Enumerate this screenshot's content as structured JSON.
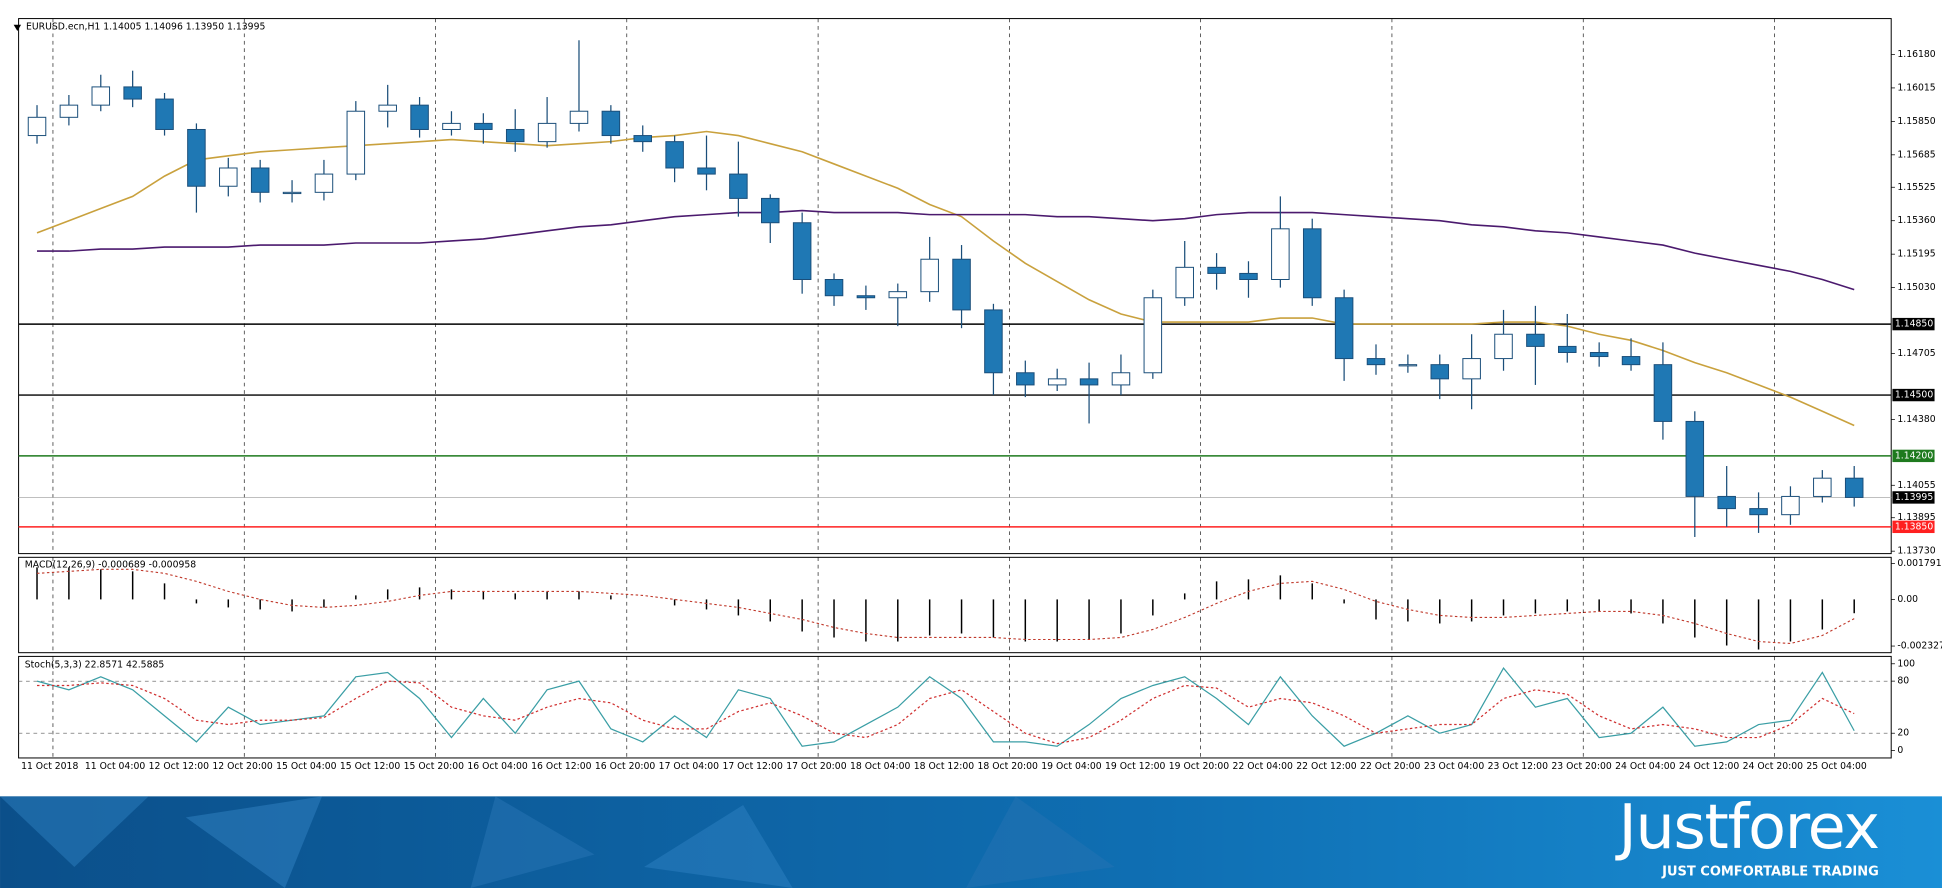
{
  "chart_data": [
    {
      "type": "candlestick",
      "title": "EURUSD.ecn,H1  1.14005 1.14096 1.13950 1.13995",
      "categories": [
        "11 Oct 2018",
        null,
        "11 Oct 04:00",
        null,
        "12 Oct 12:00",
        null,
        "12 Oct 20:00",
        null,
        "15 Oct 04:00",
        null,
        "15 Oct 12:00",
        null,
        "15 Oct 20:00",
        null,
        "16 Oct 04:00",
        null,
        "16 Oct 12:00",
        null,
        "16 Oct 20:00",
        null,
        "17 Oct 04:00",
        null,
        "17 Oct 12:00",
        null,
        "17 Oct 20:00",
        null,
        "18 Oct 04:00",
        null,
        "18 Oct 12:00",
        null,
        "18 Oct 20:00",
        null,
        "19 Oct 04:00",
        null,
        "19 Oct 12:00",
        null,
        "19 Oct 20:00",
        null,
        "22 Oct 04:00",
        null,
        "22 Oct 12:00",
        null,
        "22 Oct 20:00",
        null,
        "23 Oct 04:00",
        null,
        "23 Oct 12:00",
        null,
        "23 Oct 20:00",
        null,
        "24 Oct 04:00",
        null,
        "24 Oct 12:00",
        null,
        "24 Oct 20:00",
        null,
        "25 Oct 04:00",
        null
      ],
      "open": [
        1.1578,
        1.1587,
        1.1593,
        1.1602,
        1.1596,
        1.1581,
        1.1553,
        1.1562,
        1.155,
        1.155,
        1.1559,
        1.159,
        1.1593,
        1.1581,
        1.1584,
        1.1581,
        1.1575,
        1.1584,
        1.159,
        1.1578,
        1.1575,
        1.1562,
        1.1559,
        1.1547,
        1.1535,
        1.1507,
        1.1499,
        1.1498,
        1.1501,
        1.1517,
        1.1492,
        1.1461,
        1.1455,
        1.1458,
        1.1455,
        1.1461,
        1.1498,
        1.1513,
        1.151,
        1.1507,
        1.1532,
        1.1498,
        1.1468,
        1.1465,
        1.1465,
        1.1458,
        1.1468,
        1.148,
        1.1474,
        1.1471,
        1.1469,
        1.1465,
        1.1437,
        1.14,
        1.1394,
        1.1391,
        1.14,
        1.1409
      ],
      "high": [
        1.1593,
        1.1598,
        1.1608,
        1.161,
        1.1599,
        1.1584,
        1.1567,
        1.1566,
        1.1556,
        1.1566,
        1.1595,
        1.1603,
        1.1597,
        1.159,
        1.1589,
        1.1591,
        1.1597,
        1.1625,
        1.1593,
        1.1583,
        1.1578,
        1.1578,
        1.1575,
        1.1549,
        1.154,
        1.151,
        1.1504,
        1.1505,
        1.1528,
        1.1524,
        1.1495,
        1.1467,
        1.1463,
        1.1466,
        1.147,
        1.1502,
        1.1526,
        1.152,
        1.1516,
        1.1548,
        1.1537,
        1.1502,
        1.1475,
        1.147,
        1.147,
        1.148,
        1.1492,
        1.1494,
        1.149,
        1.1476,
        1.1478,
        1.1476,
        1.1442,
        1.1415,
        1.1402,
        1.1405,
        1.1413,
        1.1415
      ],
      "low": [
        1.1574,
        1.1583,
        1.159,
        1.1592,
        1.1578,
        1.154,
        1.1548,
        1.1545,
        1.1545,
        1.1546,
        1.1556,
        1.1582,
        1.1577,
        1.1578,
        1.1574,
        1.157,
        1.1572,
        1.158,
        1.1574,
        1.157,
        1.1555,
        1.1551,
        1.1538,
        1.1525,
        1.15,
        1.1494,
        1.1492,
        1.1484,
        1.1496,
        1.1483,
        1.145,
        1.1449,
        1.1452,
        1.1436,
        1.145,
        1.1458,
        1.1494,
        1.1502,
        1.1498,
        1.1503,
        1.1494,
        1.1457,
        1.146,
        1.1461,
        1.1448,
        1.1443,
        1.1462,
        1.1455,
        1.1466,
        1.1464,
        1.1462,
        1.1428,
        1.138,
        1.1385,
        1.1382,
        1.1386,
        1.1397,
        1.1395
      ],
      "close": [
        1.1587,
        1.1593,
        1.1602,
        1.1596,
        1.1581,
        1.1553,
        1.1562,
        1.155,
        1.155,
        1.1559,
        1.159,
        1.1593,
        1.1581,
        1.1584,
        1.1581,
        1.1575,
        1.1584,
        1.159,
        1.1578,
        1.1575,
        1.1562,
        1.1559,
        1.1547,
        1.1535,
        1.1507,
        1.1499,
        1.1498,
        1.1501,
        1.1517,
        1.1492,
        1.1461,
        1.1455,
        1.1458,
        1.1455,
        1.1461,
        1.1498,
        1.1513,
        1.151,
        1.1507,
        1.1532,
        1.1498,
        1.1468,
        1.1465,
        1.1465,
        1.1458,
        1.1468,
        1.148,
        1.1474,
        1.1471,
        1.1469,
        1.1465,
        1.1437,
        1.14,
        1.1394,
        1.1391,
        1.14,
        1.1409,
        1.13995
      ],
      "up_color": "#ffffff",
      "down_color": "#1f78b4",
      "wick_color": "#1a4e7a",
      "lines": [
        {
          "color": "#c9a13d",
          "values": [
            1.153,
            1.1536,
            1.1542,
            1.1548,
            1.1558,
            1.1566,
            1.1568,
            1.157,
            1.1571,
            1.1572,
            1.1573,
            1.1574,
            1.1575,
            1.1576,
            1.1575,
            1.1574,
            1.1573,
            1.1574,
            1.1575,
            1.1577,
            1.1578,
            1.158,
            1.1578,
            1.1574,
            1.157,
            1.1564,
            1.1558,
            1.1552,
            1.1544,
            1.1538,
            1.1526,
            1.1515,
            1.1506,
            1.1497,
            1.149,
            1.1486,
            1.1486,
            1.1486,
            1.1486,
            1.1488,
            1.1488,
            1.1485,
            1.1485,
            1.1485,
            1.1485,
            1.1485,
            1.1486,
            1.1486,
            1.1484,
            1.148,
            1.1477,
            1.1472,
            1.1466,
            1.1461,
            1.1455,
            1.1449,
            1.1442,
            1.1435
          ]
        },
        {
          "color": "#4b1a6e",
          "values": [
            1.1521,
            1.1521,
            1.1522,
            1.1522,
            1.1523,
            1.1523,
            1.1523,
            1.1524,
            1.1524,
            1.1524,
            1.1525,
            1.1525,
            1.1525,
            1.1526,
            1.1527,
            1.1529,
            1.1531,
            1.1533,
            1.1534,
            1.1536,
            1.1538,
            1.1539,
            1.154,
            1.154,
            1.1541,
            1.154,
            1.154,
            1.154,
            1.1539,
            1.1539,
            1.1539,
            1.1539,
            1.1538,
            1.1538,
            1.1537,
            1.1536,
            1.1537,
            1.1539,
            1.154,
            1.154,
            1.154,
            1.1539,
            1.1538,
            1.1537,
            1.1536,
            1.1534,
            1.1533,
            1.1531,
            1.153,
            1.1528,
            1.1526,
            1.1524,
            1.152,
            1.1517,
            1.1514,
            1.1511,
            1.1507,
            1.1502
          ]
        }
      ],
      "levels": [
        {
          "value": 1.1485,
          "label": "1.14850",
          "color": "#000000"
        },
        {
          "value": 1.145,
          "label": "1.14500",
          "color": "#000000"
        },
        {
          "value": 1.142,
          "label": "1.14200",
          "color": "#1e7a1e"
        },
        {
          "value": 1.1385,
          "label": "1.13850",
          "color": "#ff2020"
        }
      ],
      "last_price": {
        "value": 1.13995,
        "label": "1.13995",
        "color": "#000000"
      },
      "ylim": [
        1.13718,
        1.16357
      ],
      "yticks": [
        {
          "value": 1.1618,
          "label": "1.16180"
        },
        1.16015,
        {
          "value": 1.1585,
          "label": "1.15850"
        },
        1.15685,
        1.15525,
        {
          "value": 1.1536,
          "label": "1.15360"
        },
        1.15195,
        {
          "value": 1.1503,
          "label": "1.15030"
        },
        1.14705,
        {
          "value": 1.1438,
          "label": "1.14380"
        },
        1.14055,
        1.13895,
        {
          "value": 1.1373,
          "label": "1.13730"
        }
      ]
    },
    {
      "type": "macd",
      "title": "MACD(12,26,9) -0.000689 -0.000958",
      "values": [
        0.0016,
        0.0016,
        0.0015,
        0.0014,
        0.0008,
        -0.0002,
        -0.0004,
        -0.0005,
        -0.0006,
        -0.0004,
        0.0002,
        0.0005,
        0.0006,
        0.0005,
        0.0004,
        0.0003,
        0.0004,
        0.0004,
        0.0002,
        0,
        -0.0003,
        -0.0005,
        -0.0008,
        -0.0011,
        -0.0016,
        -0.0019,
        -0.0021,
        -0.0021,
        -0.0018,
        -0.0017,
        -0.0019,
        -0.0021,
        -0.0021,
        -0.002,
        -0.0017,
        -0.0008,
        0.0003,
        0.0009,
        0.001,
        0.0012,
        0.0008,
        -0.0002,
        -0.001,
        -0.0011,
        -0.0012,
        -0.0011,
        -0.0008,
        -0.0007,
        -0.0006,
        -0.0006,
        -0.0007,
        -0.0012,
        -0.0019,
        -0.0023,
        -0.0025,
        -0.0021,
        -0.0015,
        -0.000689
      ],
      "color": "#000000",
      "signal": {
        "color": "#c0392b",
        "values": [
          0.0013,
          0.0014,
          0.0015,
          0.0015,
          0.0013,
          0.0009,
          0.0004,
          0,
          -0.0003,
          -0.0004,
          -0.0003,
          -0.0001,
          0.0002,
          0.0004,
          0.0004,
          0.0004,
          0.0004,
          0.0004,
          0.0003,
          0.0002,
          0,
          -0.0002,
          -0.0004,
          -0.0007,
          -0.001,
          -0.0014,
          -0.0017,
          -0.0019,
          -0.0019,
          -0.0019,
          -0.0019,
          -0.002,
          -0.002,
          -0.002,
          -0.0019,
          -0.0015,
          -0.0009,
          -0.0002,
          0.0004,
          0.0008,
          0.0009,
          0.0005,
          -0.0001,
          -0.0005,
          -0.0008,
          -0.0009,
          -0.0009,
          -0.0008,
          -0.0007,
          -0.0006,
          -0.0006,
          -0.0008,
          -0.0012,
          -0.0017,
          -0.0021,
          -0.0022,
          -0.0018,
          -0.000958
        ]
      },
      "ylim": [
        -0.002658,
        0.0021
      ],
      "yticks": [
        0.001791,
        {
          "value": 0,
          "label": "0.00"
        },
        -0.002327
      ]
    },
    {
      "type": "line",
      "title": "Stoch(5,3,3) 22.8571 42.5885",
      "series": [
        {
          "color": "#3a9ea5",
          "values": [
            80,
            70,
            85,
            70,
            40,
            10,
            50,
            30,
            35,
            40,
            85,
            90,
            60,
            15,
            60,
            20,
            70,
            80,
            25,
            10,
            40,
            15,
            70,
            60,
            5,
            10,
            30,
            50,
            85,
            60,
            10,
            10,
            5,
            30,
            60,
            75,
            85,
            60,
            30,
            85,
            40,
            5,
            20,
            40,
            20,
            30,
            95,
            50,
            60,
            15,
            20,
            50,
            5,
            10,
            30,
            35,
            90,
            22.8571
          ]
        },
        {
          "color": "#d03030",
          "dashed": true,
          "values": [
            75,
            75,
            78,
            75,
            60,
            35,
            30,
            35,
            35,
            38,
            60,
            80,
            78,
            50,
            40,
            35,
            50,
            60,
            55,
            35,
            25,
            25,
            45,
            55,
            40,
            20,
            15,
            30,
            60,
            70,
            45,
            20,
            8,
            15,
            35,
            60,
            75,
            72,
            50,
            60,
            55,
            40,
            20,
            25,
            30,
            30,
            60,
            70,
            65,
            40,
            25,
            30,
            25,
            15,
            15,
            30,
            60,
            42.5885
          ]
        }
      ],
      "ylim": [
        -8.5,
        108.5
      ],
      "yticks": [
        100,
        80,
        20,
        0
      ]
    }
  ],
  "brand": {
    "name": "Justforex",
    "tagline": "JUST COMFORTABLE TRADING"
  }
}
